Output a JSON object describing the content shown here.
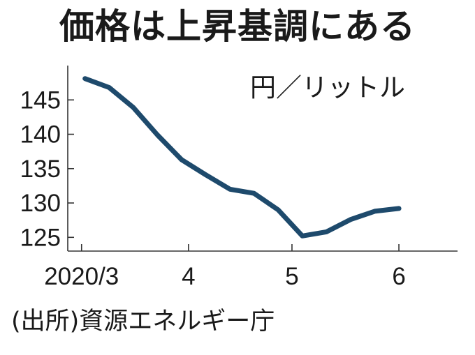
{
  "title": "価格は上昇基調にある",
  "source": "(出所)資源エネルギー庁",
  "chart_data": {
    "type": "line",
    "unit": "円／リットル",
    "x_tick_labels": [
      "2020/3",
      "4",
      "5",
      "6"
    ],
    "x_tick_dates": [
      "2020-03-01",
      "2020-04-01",
      "2020-05-01",
      "2020-06-01"
    ],
    "y_ticks": [
      125,
      130,
      135,
      140,
      145
    ],
    "ylim": [
      123,
      150
    ],
    "xlim": [
      "2020-02-26",
      "2020-06-18"
    ],
    "line_color": "#1e4a6c",
    "grid": false,
    "series": [
      {
        "x": [
          "2020-03-02",
          "2020-03-09",
          "2020-03-16",
          "2020-03-23",
          "2020-03-30",
          "2020-04-06",
          "2020-04-13",
          "2020-04-20",
          "2020-04-27",
          "2020-05-04",
          "2020-05-11",
          "2020-05-18",
          "2020-05-25",
          "2020-06-01",
          "2020-06-08",
          "2020-06-15"
        ],
        "y": [
          148.1,
          146.8,
          143.9,
          139.9,
          136.3,
          134.1,
          132.0,
          131.4,
          129.0,
          125.2,
          125.8,
          127.6,
          128.8,
          129.2,
          null,
          null
        ]
      }
    ]
  }
}
